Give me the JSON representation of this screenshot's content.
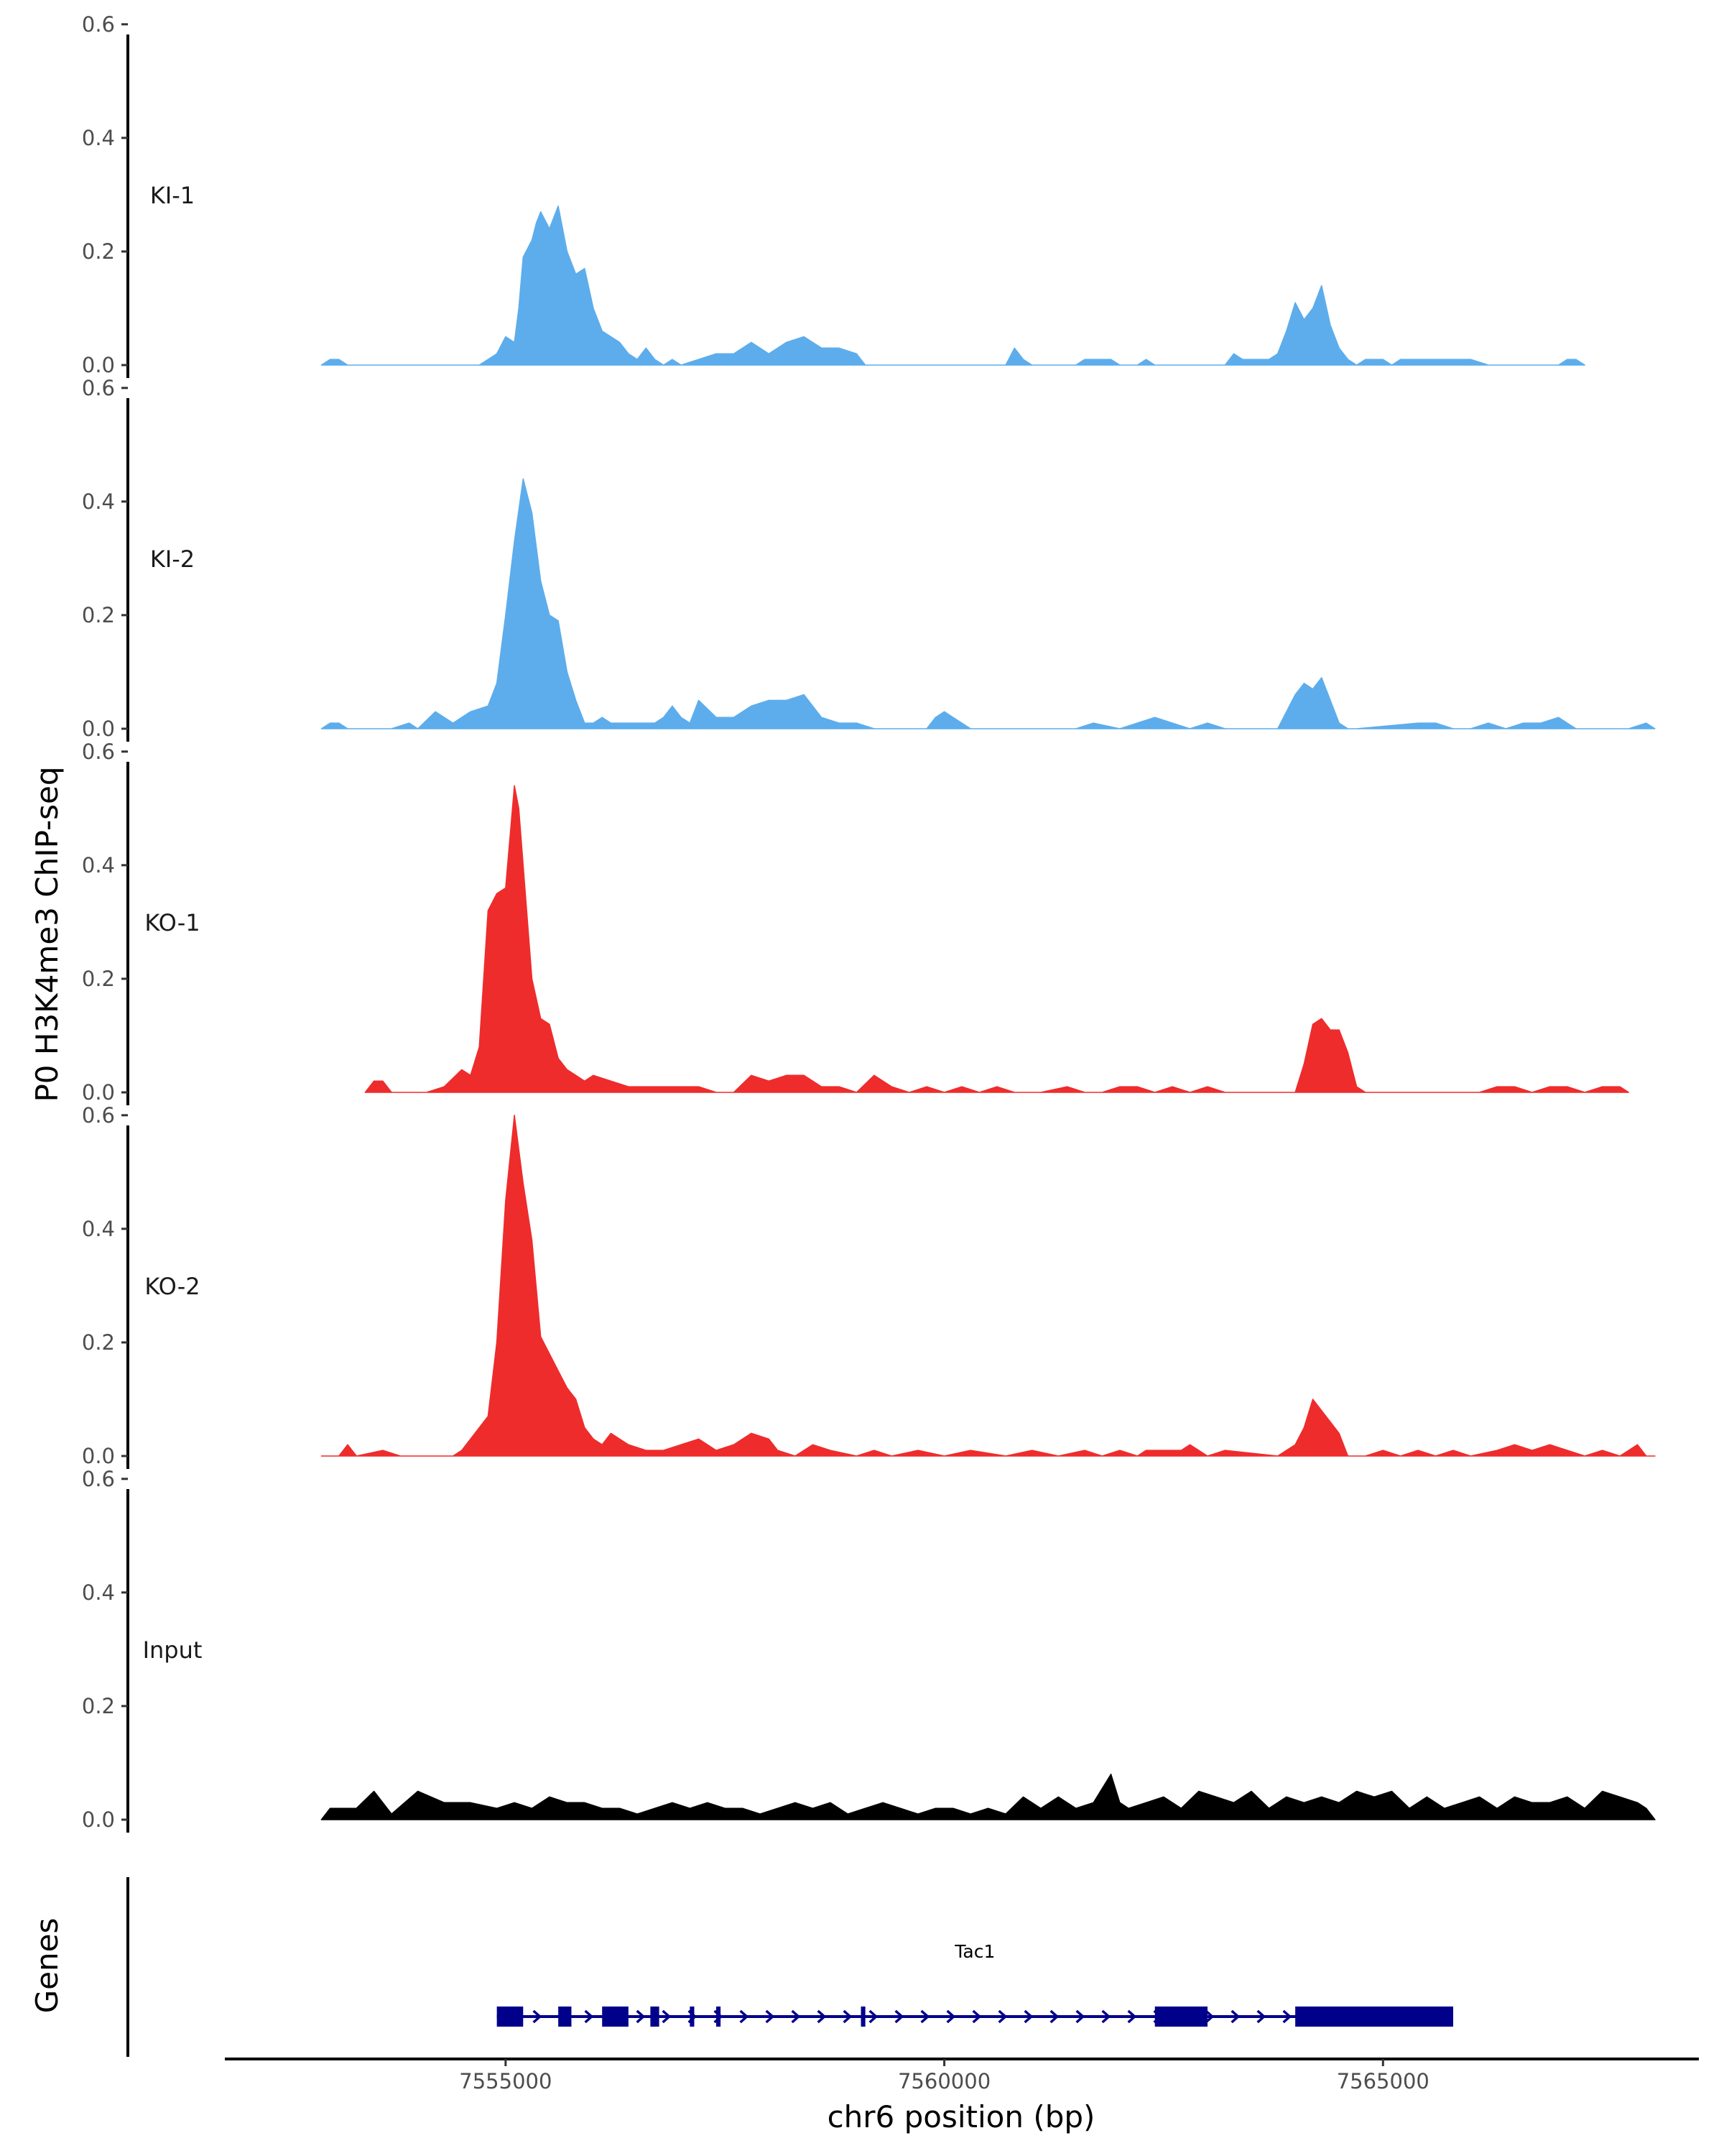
{
  "chart_data": {
    "type": "area",
    "y_axis_title": "P0 H3K4me3 ChIP-seq",
    "x_axis_title": "chr6 position (bp)",
    "gene_track_title": "Genes",
    "ylim": [
      0,
      0.62
    ],
    "y_ticks": [
      0.0,
      0.2,
      0.4,
      0.6
    ],
    "y_tick_labels": [
      "0.0",
      "0.2",
      "0.4",
      "0.6"
    ],
    "xlim": [
      7551800,
      7568600
    ],
    "x_ticks": [
      7555000,
      7560000,
      7565000
    ],
    "x_tick_labels": [
      "7555000",
      "7560000",
      "7565000"
    ],
    "tracks": [
      {
        "name": "KI-1",
        "color": "#5DADEC",
        "x": [
          7552900,
          7553000,
          7553100,
          7553200,
          7554700,
          7554900,
          7555000,
          7555100,
          7555150,
          7555200,
          7555300,
          7555350,
          7555400,
          7555500,
          7555600,
          7555700,
          7555800,
          7555900,
          7556000,
          7556100,
          7556300,
          7556400,
          7556500,
          7556600,
          7556700,
          7556800,
          7556900,
          7557000,
          7557200,
          7557400,
          7557600,
          7557800,
          7558000,
          7558200,
          7558400,
          7558600,
          7558800,
          7559000,
          7559100,
          7560700,
          7560800,
          7560900,
          7561000,
          7561500,
          7561600,
          7561700,
          7561900,
          7562000,
          7562200,
          7562300,
          7562400,
          7562500,
          7563200,
          7563300,
          7563400,
          7563500,
          7563700,
          7563800,
          7563900,
          7564000,
          7564100,
          7564200,
          7564300,
          7564400,
          7564500,
          7564600,
          7564700,
          7564800,
          7565000,
          7565100,
          7565200,
          7565400,
          7565600,
          7565800,
          7566000,
          7566200,
          7566400,
          7566600,
          7567000,
          7567100,
          7567200,
          7567300
        ],
        "y": [
          0,
          0.01,
          0.01,
          0,
          0,
          0.02,
          0.05,
          0.04,
          0.1,
          0.19,
          0.22,
          0.25,
          0.27,
          0.24,
          0.28,
          0.2,
          0.16,
          0.17,
          0.1,
          0.06,
          0.04,
          0.02,
          0.01,
          0.03,
          0.01,
          0,
          0.01,
          0,
          0.01,
          0.02,
          0.02,
          0.04,
          0.02,
          0.04,
          0.05,
          0.03,
          0.03,
          0.02,
          0,
          0,
          0.03,
          0.01,
          0,
          0,
          0.01,
          0.01,
          0.01,
          0,
          0,
          0.01,
          0,
          0,
          0,
          0.02,
          0.01,
          0.01,
          0.01,
          0.02,
          0.06,
          0.11,
          0.08,
          0.1,
          0.14,
          0.07,
          0.03,
          0.01,
          0,
          0.01,
          0.01,
          0,
          0.01,
          0.01,
          0.01,
          0.01,
          0.01,
          0,
          0,
          0,
          0,
          0.01,
          0.01,
          0
        ],
        "label_value_y": 0.3
      },
      {
        "name": "KI-2",
        "color": "#5DADEC",
        "x": [
          7552900,
          7553000,
          7553100,
          7553200,
          7553700,
          7553900,
          7554000,
          7554200,
          7554400,
          7554600,
          7554800,
          7554900,
          7555000,
          7555100,
          7555200,
          7555300,
          7555400,
          7555500,
          7555600,
          7555700,
          7555800,
          7555900,
          7556000,
          7556100,
          7556200,
          7556400,
          7556600,
          7556700,
          7556800,
          7556900,
          7557000,
          7557100,
          7557200,
          7557400,
          7557600,
          7557800,
          7558000,
          7558200,
          7558400,
          7558600,
          7558800,
          7559000,
          7559200,
          7559800,
          7559900,
          7560000,
          7560100,
          7560200,
          7560300,
          7560400,
          7560600,
          7561500,
          7561700,
          7562000,
          7562200,
          7562400,
          7562600,
          7562800,
          7563000,
          7563200,
          7563400,
          7563800,
          7563900,
          7564000,
          7564100,
          7564200,
          7564300,
          7564400,
          7564500,
          7564600,
          7564700,
          7565400,
          7565600,
          7565800,
          7566000,
          7566200,
          7566400,
          7566600,
          7566800,
          7567000,
          7567200,
          7567400,
          7567800,
          7568000,
          7568100
        ],
        "y": [
          0,
          0.01,
          0.01,
          0,
          0,
          0.01,
          0,
          0.03,
          0.01,
          0.03,
          0.04,
          0.08,
          0.2,
          0.33,
          0.44,
          0.38,
          0.26,
          0.2,
          0.19,
          0.1,
          0.05,
          0.01,
          0.01,
          0.02,
          0.01,
          0.01,
          0.01,
          0.01,
          0.02,
          0.04,
          0.02,
          0.01,
          0.05,
          0.02,
          0.02,
          0.04,
          0.05,
          0.05,
          0.06,
          0.02,
          0.01,
          0.01,
          0,
          0,
          0.02,
          0.03,
          0.02,
          0.01,
          0,
          0,
          0,
          0,
          0.01,
          0,
          0.01,
          0.02,
          0.01,
          0,
          0.01,
          0,
          0,
          0,
          0.03,
          0.06,
          0.08,
          0.07,
          0.09,
          0.05,
          0.01,
          0,
          0,
          0.01,
          0.01,
          0,
          0,
          0.01,
          0,
          0.01,
          0.01,
          0.02,
          0,
          0,
          0,
          0.01,
          0
        ],
        "label_value_y": 0.3
      },
      {
        "name": "KO-1",
        "color": "#EE2C2C",
        "x": [
          7553400,
          7553500,
          7553600,
          7553700,
          7554100,
          7554300,
          7554500,
          7554600,
          7554700,
          7554800,
          7554900,
          7555000,
          7555100,
          7555150,
          7555200,
          7555300,
          7555400,
          7555500,
          7555600,
          7555700,
          7555800,
          7555900,
          7556000,
          7556200,
          7556400,
          7556600,
          7556800,
          7557000,
          7557200,
          7557400,
          7557600,
          7557800,
          7558000,
          7558200,
          7558400,
          7558600,
          7558800,
          7559000,
          7559200,
          7559400,
          7559600,
          7559800,
          7560000,
          7560200,
          7560400,
          7560600,
          7560800,
          7561100,
          7561400,
          7561600,
          7561800,
          7562000,
          7562200,
          7562400,
          7562600,
          7562800,
          7563000,
          7563200,
          7564000,
          7564100,
          7564200,
          7564300,
          7564400,
          7564500,
          7564600,
          7564700,
          7564800,
          7566100,
          7566300,
          7566500,
          7566700,
          7566900,
          7567100,
          7567300,
          7567500,
          7567700,
          7567800
        ],
        "y": [
          0,
          0.02,
          0.02,
          0,
          0,
          0.01,
          0.04,
          0.03,
          0.08,
          0.32,
          0.35,
          0.36,
          0.54,
          0.5,
          0.4,
          0.2,
          0.13,
          0.12,
          0.06,
          0.04,
          0.03,
          0.02,
          0.03,
          0.02,
          0.01,
          0.01,
          0.01,
          0.01,
          0.01,
          0,
          0,
          0.03,
          0.02,
          0.03,
          0.03,
          0.01,
          0.01,
          0,
          0.03,
          0.01,
          0,
          0.01,
          0,
          0.01,
          0,
          0.01,
          0,
          0,
          0.01,
          0,
          0,
          0.01,
          0.01,
          0,
          0.01,
          0,
          0.01,
          0,
          0,
          0.05,
          0.12,
          0.13,
          0.11,
          0.11,
          0.07,
          0.01,
          0,
          0,
          0.01,
          0.01,
          0,
          0.01,
          0.01,
          0,
          0.01,
          0.01,
          0
        ],
        "label_value_y": 0.3
      },
      {
        "name": "KO-2",
        "color": "#EE2C2C",
        "x": [
          7552900,
          7553100,
          7553200,
          7553300,
          7553600,
          7553800,
          7554000,
          7554400,
          7554500,
          7554600,
          7554800,
          7554900,
          7555000,
          7555100,
          7555200,
          7555300,
          7555400,
          7555500,
          7555600,
          7555700,
          7555800,
          7555900,
          7556000,
          7556100,
          7556200,
          7556400,
          7556600,
          7556800,
          7557000,
          7557200,
          7557400,
          7557600,
          7557800,
          7558000,
          7558100,
          7558300,
          7558500,
          7558700,
          7559000,
          7559200,
          7559400,
          7559700,
          7560000,
          7560300,
          7560700,
          7561000,
          7561300,
          7561600,
          7561800,
          7562000,
          7562200,
          7562300,
          7562500,
          7562700,
          7562800,
          7563000,
          7563200,
          7563800,
          7564000,
          7564100,
          7564200,
          7564300,
          7564400,
          7564500,
          7564600,
          7564800,
          7565000,
          7565200,
          7565400,
          7565600,
          7565800,
          7566000,
          7566300,
          7566500,
          7566700,
          7566900,
          7567300,
          7567500,
          7567700,
          7567900,
          7568000,
          7568100
        ],
        "y": [
          0,
          0,
          0.02,
          0,
          0.01,
          0,
          0,
          0,
          0.01,
          0.03,
          0.07,
          0.2,
          0.45,
          0.6,
          0.48,
          0.38,
          0.21,
          0.18,
          0.15,
          0.12,
          0.1,
          0.05,
          0.03,
          0.02,
          0.04,
          0.02,
          0.01,
          0.01,
          0.02,
          0.03,
          0.01,
          0.02,
          0.04,
          0.03,
          0.01,
          0,
          0.02,
          0.01,
          0,
          0.01,
          0,
          0.01,
          0,
          0.01,
          0,
          0.01,
          0,
          0.01,
          0,
          0.01,
          0,
          0.01,
          0.01,
          0.01,
          0.02,
          0,
          0.01,
          0,
          0.02,
          0.05,
          0.1,
          0.08,
          0.06,
          0.04,
          0,
          0,
          0.01,
          0,
          0.01,
          0,
          0.01,
          0,
          0.01,
          0.02,
          0.01,
          0.02,
          0,
          0.01,
          0,
          0.02,
          0,
          0
        ],
        "label_value_y": 0.3
      },
      {
        "name": "Input",
        "color": "#000000",
        "x": [
          7552900,
          7553000,
          7553300,
          7553500,
          7553700,
          7554000,
          7554300,
          7554600,
          7554900,
          7555100,
          7555300,
          7555500,
          7555700,
          7555900,
          7556100,
          7556300,
          7556500,
          7556700,
          7556900,
          7557100,
          7557300,
          7557500,
          7557700,
          7557900,
          7558100,
          7558300,
          7558500,
          7558700,
          7558900,
          7559100,
          7559300,
          7559500,
          7559700,
          7559900,
          7560100,
          7560300,
          7560500,
          7560700,
          7560900,
          7561100,
          7561300,
          7561500,
          7561700,
          7561900,
          7562000,
          7562100,
          7562300,
          7562500,
          7562700,
          7562900,
          7563100,
          7563300,
          7563500,
          7563700,
          7563900,
          7564100,
          7564300,
          7564500,
          7564700,
          7564900,
          7565100,
          7565300,
          7565500,
          7565700,
          7565900,
          7566100,
          7566300,
          7566500,
          7566700,
          7566900,
          7567100,
          7567300,
          7567500,
          7567700,
          7567900,
          7568000,
          7568100
        ],
        "y": [
          0,
          0.02,
          0.02,
          0.05,
          0.01,
          0.05,
          0.03,
          0.03,
          0.02,
          0.03,
          0.02,
          0.04,
          0.03,
          0.03,
          0.02,
          0.02,
          0.01,
          0.02,
          0.03,
          0.02,
          0.03,
          0.02,
          0.02,
          0.01,
          0.02,
          0.03,
          0.02,
          0.03,
          0.01,
          0.02,
          0.03,
          0.02,
          0.01,
          0.02,
          0.02,
          0.01,
          0.02,
          0.01,
          0.04,
          0.02,
          0.04,
          0.02,
          0.03,
          0.08,
          0.03,
          0.02,
          0.03,
          0.04,
          0.02,
          0.05,
          0.04,
          0.03,
          0.05,
          0.02,
          0.04,
          0.03,
          0.04,
          0.03,
          0.05,
          0.04,
          0.05,
          0.02,
          0.04,
          0.02,
          0.03,
          0.04,
          0.02,
          0.04,
          0.03,
          0.03,
          0.04,
          0.02,
          0.05,
          0.04,
          0.03,
          0.02,
          0
        ],
        "label_value_y": 0.3
      }
    ],
    "gene_track": {
      "gene_name": "Tac1",
      "color": "#00008B",
      "start": 7554900,
      "end": 7565800,
      "strand": "+",
      "exons": [
        [
          7554900,
          7555200
        ],
        [
          7555600,
          7555750
        ],
        [
          7556100,
          7556400
        ],
        [
          7556650,
          7556750
        ],
        [
          7557100,
          7557150
        ],
        [
          7557400,
          7557450
        ],
        [
          7559050,
          7559100
        ],
        [
          7562400,
          7563000
        ],
        [
          7564000,
          7565800
        ]
      ]
    }
  }
}
